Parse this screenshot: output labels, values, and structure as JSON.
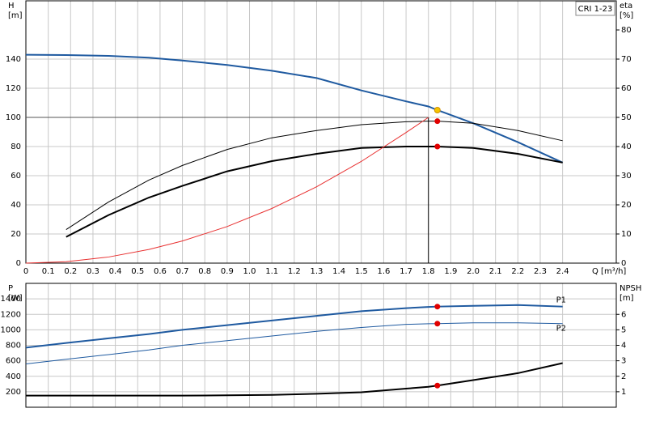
{
  "chart_data": [
    {
      "type": "line",
      "title": "CRI 1-23",
      "ylabel": "H",
      "yunit": "[m]",
      "y2label": "eta",
      "y2unit": "[%]",
      "xlabel": "Q [m³/h]",
      "x": [
        0,
        0.18,
        0.37,
        0.55,
        0.7,
        0.9,
        1.1,
        1.3,
        1.5,
        1.7,
        1.8,
        1.84,
        2.0,
        2.2,
        2.4
      ],
      "xlim": [
        0,
        2.64
      ],
      "xticks": [
        0,
        0.1,
        0.2,
        0.3,
        0.4,
        0.5,
        0.6,
        0.7,
        0.8,
        0.9,
        {
          "value": 1,
          "label": "1.0"
        },
        1.1,
        1.2,
        1.3,
        1.4,
        1.5,
        1.6,
        1.7,
        1.8,
        1.9,
        {
          "value": 2,
          "label": "2.0"
        },
        2.1,
        2.2,
        2.3,
        2.4
      ],
      "ylim": [
        0,
        180
      ],
      "yticks": [
        0,
        20,
        40,
        60,
        80,
        100,
        120,
        140
      ],
      "y2lim": [
        0,
        90
      ],
      "y2ticks": [
        0,
        10,
        20,
        30,
        40,
        50,
        60,
        70,
        80
      ],
      "grid": true,
      "series": [
        {
          "color": "#1f5aa0",
          "width": 2,
          "values": [
            143,
            142.8,
            142.2,
            141,
            139,
            136,
            132,
            127,
            118.5,
            111,
            107.5,
            105,
            96,
            83,
            69
          ]
        },
        {
          "color": "#000000",
          "width": 1,
          "axis": "y2",
          "values": [
            null,
            11.5,
            21,
            28.5,
            33.5,
            39,
            43,
            45.5,
            47.5,
            48.5,
            48.7,
            48.7,
            48,
            45.5,
            42
          ]
        },
        {
          "color": "#000000",
          "width": 2,
          "axis": "y2",
          "values": [
            null,
            9,
            16.5,
            22.5,
            26.5,
            31.5,
            35,
            37.5,
            39.5,
            40,
            40,
            40,
            39.5,
            37.5,
            34.5
          ]
        },
        {
          "color": "#e83030",
          "width": 1,
          "values": [
            0,
            1,
            4.2,
            9.4,
            15.2,
            25.1,
            37.5,
            52.4,
            69.8,
            89.6,
            100,
            null,
            null,
            null,
            null
          ]
        }
      ],
      "reference_lines": {
        "y": 100,
        "x": 1.8
      },
      "points": [
        {
          "x": 1.84,
          "y": 105,
          "color": "#f5c400"
        },
        {
          "x": 1.84,
          "y": 48.7,
          "axis": "y2",
          "color": "#e00000"
        },
        {
          "x": 1.84,
          "y": 40,
          "axis": "y2",
          "color": "#e00000"
        }
      ]
    },
    {
      "type": "line",
      "ylabel": "P",
      "yunit": "[W]",
      "y2label": "NPSH",
      "y2unit": "[m]",
      "x": [
        0,
        0.18,
        0.37,
        0.55,
        0.7,
        0.9,
        1.1,
        1.3,
        1.5,
        1.7,
        1.8,
        1.84,
        2.0,
        2.2,
        2.4
      ],
      "xlim": [
        0,
        2.64
      ],
      "xticks": [
        0,
        0.1,
        0.2,
        0.3,
        0.4,
        0.5,
        0.6,
        0.7,
        0.8,
        0.9,
        1,
        1.1,
        1.2,
        1.3,
        1.4,
        1.5,
        1.6,
        1.7,
        1.8,
        1.9,
        2,
        2.1,
        2.2,
        2.3,
        2.4
      ],
      "ylim": [
        0,
        1600
      ],
      "yticks": [
        200,
        400,
        600,
        800,
        1000,
        1200,
        1400
      ],
      "y2lim": [
        0,
        8
      ],
      "y2ticks": [
        1,
        2,
        3,
        4,
        5,
        6
      ],
      "grid": true,
      "series": [
        {
          "name": "P1",
          "color": "#1f5aa0",
          "width": 2,
          "values": [
            770,
            830,
            890,
            945,
            1000,
            1060,
            1120,
            1180,
            1240,
            1280,
            1295,
            1300,
            1310,
            1320,
            1300
          ]
        },
        {
          "name": "P2",
          "color": "#1f5aa0",
          "width": 1,
          "values": [
            560,
            620,
            680,
            740,
            800,
            860,
            920,
            980,
            1030,
            1070,
            1078,
            1080,
            1090,
            1090,
            1080
          ]
        },
        {
          "color": "#000000",
          "width": 2,
          "axis": "y2",
          "values": [
            0.75,
            0.75,
            0.75,
            0.75,
            0.75,
            0.77,
            0.8,
            0.87,
            0.97,
            1.2,
            1.32,
            1.4,
            1.75,
            2.2,
            2.85
          ]
        }
      ],
      "points": [
        {
          "x": 1.84,
          "y": 1300,
          "color": "#e00000"
        },
        {
          "x": 1.84,
          "y": 1080,
          "color": "#e00000"
        },
        {
          "x": 1.84,
          "y": 1.4,
          "axis": "y2",
          "color": "#e00000"
        }
      ]
    }
  ]
}
